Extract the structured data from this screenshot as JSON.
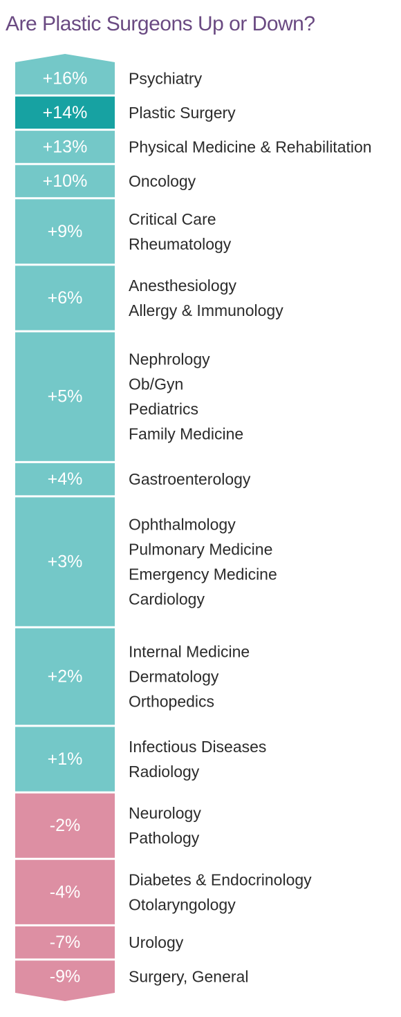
{
  "chart_data": {
    "type": "table",
    "title": "Are Plastic Surgeons Up or Down?",
    "unit": "%",
    "colors": {
      "up": "#74c8c8",
      "highlight": "#17a2a2",
      "down": "#dd8fa3",
      "highlight_text": "#c5446a",
      "title": "#6a4a82"
    },
    "rows": [
      {
        "label": "+16%",
        "value": 16,
        "specialties": [
          "Psychiatry"
        ]
      },
      {
        "label": "+14%",
        "value": 14,
        "specialties": [
          "Plastic Surgery"
        ],
        "highlight": true
      },
      {
        "label": "+13%",
        "value": 13,
        "specialties": [
          "Physical Medicine & Rehabilitation"
        ]
      },
      {
        "label": "+10%",
        "value": 10,
        "specialties": [
          "Oncology"
        ]
      },
      {
        "label": "+9%",
        "value": 9,
        "specialties": [
          "Critical Care",
          "Rheumatology"
        ]
      },
      {
        "label": "+6%",
        "value": 6,
        "specialties": [
          "Anesthesiology",
          "Allergy & Immunology"
        ]
      },
      {
        "label": "+5%",
        "value": 5,
        "specialties": [
          "Nephrology",
          "Ob/Gyn",
          "Pediatrics",
          "Family Medicine"
        ]
      },
      {
        "label": "+4%",
        "value": 4,
        "specialties": [
          "Gastroenterology"
        ]
      },
      {
        "label": "+3%",
        "value": 3,
        "specialties": [
          "Ophthalmology",
          "Pulmonary Medicine",
          "Emergency Medicine",
          "Cardiology"
        ]
      },
      {
        "label": "+2%",
        "value": 2,
        "specialties": [
          "Internal Medicine",
          "Dermatology",
          "Orthopedics"
        ]
      },
      {
        "label": "+1%",
        "value": 1,
        "specialties": [
          "Infectious Diseases",
          "Radiology"
        ]
      },
      {
        "label": "-2%",
        "value": -2,
        "specialties": [
          "Neurology",
          "Pathology"
        ]
      },
      {
        "label": "-4%",
        "value": -4,
        "specialties": [
          "Diabetes & Endocrinology",
          "Otolaryngology"
        ]
      },
      {
        "label": "-7%",
        "value": -7,
        "specialties": [
          "Urology"
        ]
      },
      {
        "label": "-9%",
        "value": -9,
        "specialties": [
          "Surgery, General"
        ]
      }
    ]
  }
}
